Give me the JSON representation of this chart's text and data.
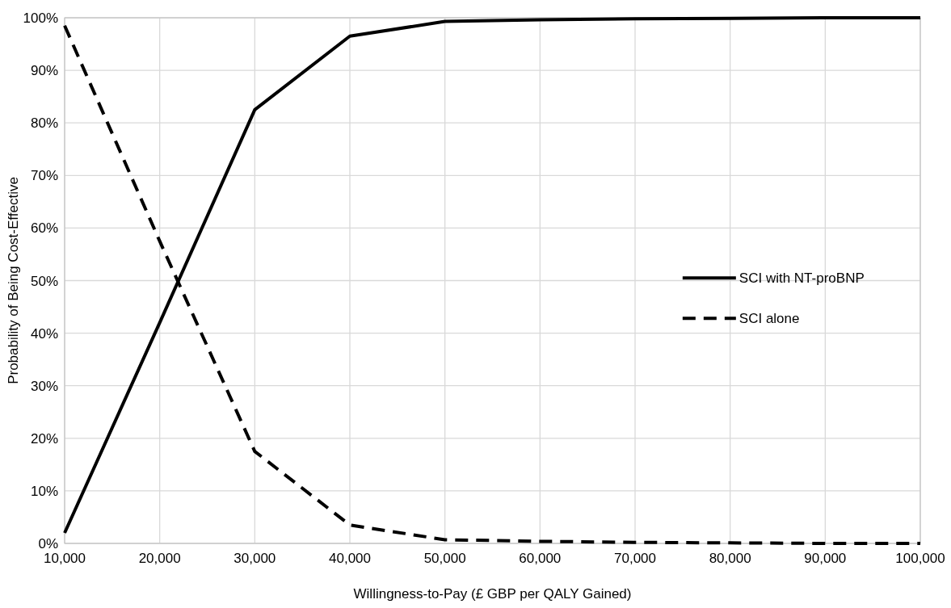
{
  "chart_data": {
    "type": "line",
    "xlabel": "Willingness-to-Pay (£ GBP per QALY Gained)",
    "ylabel": "Probability of Being Cost-Effective",
    "x": [
      10000,
      20000,
      30000,
      40000,
      50000,
      60000,
      70000,
      80000,
      90000,
      100000
    ],
    "series": [
      {
        "name": "SCI with NT-proBNP",
        "color": "#000000",
        "line_style": "solid",
        "values": [
          2,
          42,
          82.5,
          96.5,
          99.3,
          99.6,
          99.8,
          99.9,
          100,
          100
        ]
      },
      {
        "name": "SCI alone",
        "color": "#000000",
        "line_style": "dashed",
        "values": [
          98.5,
          57.5,
          17.5,
          3.5,
          0.7,
          0.4,
          0.2,
          0.1,
          0,
          0
        ]
      }
    ],
    "xlim": [
      10000,
      100000
    ],
    "xticks": [
      {
        "value": 10000,
        "label": "10,000"
      },
      {
        "value": 20000,
        "label": "20,000"
      },
      {
        "value": 30000,
        "label": "30,000"
      },
      {
        "value": 40000,
        "label": "40,000"
      },
      {
        "value": 50000,
        "label": "50,000"
      },
      {
        "value": 60000,
        "label": "60,000"
      },
      {
        "value": 70000,
        "label": "70,000"
      },
      {
        "value": 80000,
        "label": "80,000"
      },
      {
        "value": 90000,
        "label": "90,000"
      },
      {
        "value": 100000,
        "label": "100,000"
      }
    ],
    "ylim": [
      0,
      100
    ],
    "yticks": [
      {
        "value": 0,
        "label": "0%"
      },
      {
        "value": 10,
        "label": "10%"
      },
      {
        "value": 20,
        "label": "20%"
      },
      {
        "value": 30,
        "label": "30%"
      },
      {
        "value": 40,
        "label": "40%"
      },
      {
        "value": 50,
        "label": "50%"
      },
      {
        "value": 60,
        "label": "60%"
      },
      {
        "value": 70,
        "label": "70%"
      },
      {
        "value": 80,
        "label": "80%"
      },
      {
        "value": 90,
        "label": "90%"
      },
      {
        "value": 100,
        "label": "100%"
      }
    ],
    "grid": true,
    "legend": "right",
    "marker": "none"
  }
}
